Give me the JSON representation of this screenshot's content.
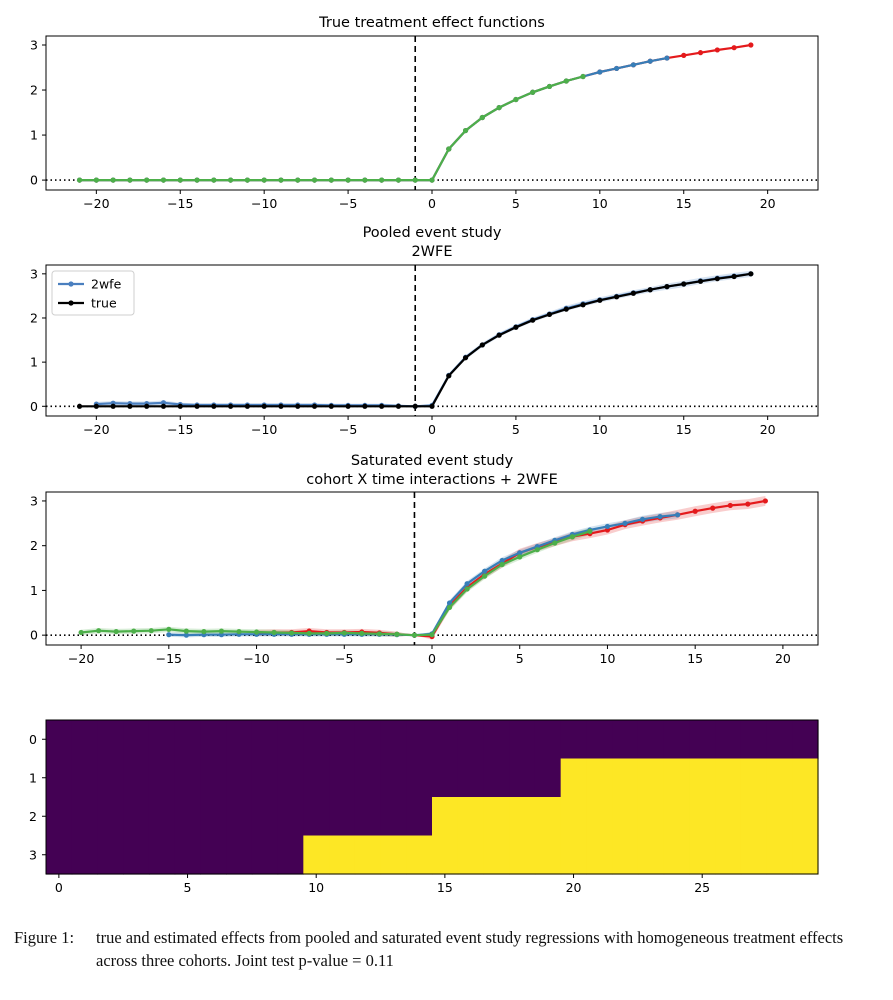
{
  "chart_data": [
    {
      "type": "line",
      "title": "True treatment effect functions",
      "xlim": [
        -23,
        23
      ],
      "ylim": [
        -0.22,
        3.2
      ],
      "xticks": [
        -20,
        -15,
        -10,
        -5,
        0,
        5,
        10,
        15,
        20
      ],
      "xtick_labels": [
        "−20",
        "−15",
        "−10",
        "−5",
        "0",
        "5",
        "10",
        "15",
        "20"
      ],
      "yticks": [
        0,
        1,
        2,
        3
      ],
      "ytick_labels": [
        "0",
        "1",
        "2",
        "3"
      ],
      "vline_x": -1,
      "hline_y": 0,
      "grid": false,
      "series": [
        {
          "color": "#e41a1c",
          "x": [
            -21,
            -20,
            -19,
            -18,
            -17,
            -16,
            -15,
            -14,
            -13,
            -12,
            -11,
            -10,
            -9,
            -8,
            -7,
            -6,
            -5,
            -4,
            -3,
            -2,
            -1,
            0,
            1,
            2,
            3,
            4,
            5,
            6,
            7,
            8,
            9,
            10,
            11,
            12,
            13,
            14,
            15,
            16,
            17,
            18,
            19
          ],
          "y": [
            0,
            0,
            0,
            0,
            0,
            0,
            0,
            0,
            0,
            0,
            0,
            0,
            0,
            0,
            0,
            0,
            0,
            0,
            0,
            0,
            0,
            0,
            0.69,
            1.1,
            1.39,
            1.61,
            1.79,
            1.95,
            2.08,
            2.2,
            2.3,
            2.4,
            2.48,
            2.56,
            2.64,
            2.71,
            2.77,
            2.83,
            2.89,
            2.94,
            3.0
          ]
        },
        {
          "color": "#377eb8",
          "x": [
            -21,
            -20,
            -19,
            -18,
            -17,
            -16,
            -15,
            -14,
            -13,
            -12,
            -11,
            -10,
            -9,
            -8,
            -7,
            -6,
            -5,
            -4,
            -3,
            -2,
            -1,
            0,
            1,
            2,
            3,
            4,
            5,
            6,
            7,
            8,
            9,
            10,
            11,
            12,
            13,
            14
          ],
          "y": [
            0,
            0,
            0,
            0,
            0,
            0,
            0,
            0,
            0,
            0,
            0,
            0,
            0,
            0,
            0,
            0,
            0,
            0,
            0,
            0,
            0,
            0,
            0.69,
            1.1,
            1.39,
            1.61,
            1.79,
            1.95,
            2.08,
            2.2,
            2.3,
            2.4,
            2.48,
            2.56,
            2.64,
            2.71
          ]
        },
        {
          "color": "#4daf4a",
          "x": [
            -21,
            -20,
            -19,
            -18,
            -17,
            -16,
            -15,
            -14,
            -13,
            -12,
            -11,
            -10,
            -9,
            -8,
            -7,
            -6,
            -5,
            -4,
            -3,
            -2,
            -1,
            0,
            1,
            2,
            3,
            4,
            5,
            6,
            7,
            8,
            9
          ],
          "y": [
            0,
            0,
            0,
            0,
            0,
            0,
            0,
            0,
            0,
            0,
            0,
            0,
            0,
            0,
            0,
            0,
            0,
            0,
            0,
            0,
            0,
            0,
            0.69,
            1.1,
            1.39,
            1.61,
            1.79,
            1.95,
            2.08,
            2.2,
            2.3
          ]
        }
      ]
    },
    {
      "type": "line",
      "title": "Pooled event study\n2WFE",
      "xlim": [
        -23,
        23
      ],
      "ylim": [
        -0.22,
        3.2
      ],
      "xticks": [
        -20,
        -15,
        -10,
        -5,
        0,
        5,
        10,
        15,
        20
      ],
      "xtick_labels": [
        "−20",
        "−15",
        "−10",
        "−5",
        "0",
        "5",
        "10",
        "15",
        "20"
      ],
      "yticks": [
        0,
        1,
        2,
        3
      ],
      "ytick_labels": [
        "0",
        "1",
        "2",
        "3"
      ],
      "vline_x": -1,
      "hline_y": 0,
      "grid": false,
      "legend": {
        "position": "upper-left",
        "entries": [
          {
            "name": "2wfe",
            "color": "#4a7fbf"
          },
          {
            "name": "true",
            "color": "#000000"
          }
        ]
      },
      "series": [
        {
          "name": "2wfe",
          "color": "#4a7fbf",
          "band": true,
          "x": [
            -20,
            -19,
            -18,
            -17,
            -16,
            -15,
            -14,
            -13,
            -12,
            -11,
            -10,
            -9,
            -8,
            -7,
            -6,
            -5,
            -4,
            -3,
            -2,
            -1,
            0,
            1,
            2,
            3,
            4,
            5,
            6,
            7,
            8,
            9,
            10,
            11,
            12,
            13,
            14,
            15,
            16,
            17,
            18,
            19
          ],
          "y": [
            0.05,
            0.07,
            0.06,
            0.06,
            0.08,
            0.04,
            0.03,
            0.03,
            0.03,
            0.03,
            0.03,
            0.03,
            0.03,
            0.03,
            0.02,
            0.02,
            0.02,
            0.02,
            0.01,
            0,
            0.02,
            0.7,
            1.11,
            1.39,
            1.62,
            1.8,
            1.96,
            2.09,
            2.22,
            2.32,
            2.41,
            2.49,
            2.57,
            2.64,
            2.71,
            2.77,
            2.84,
            2.9,
            2.95,
            3.0
          ],
          "lower": [
            0.0,
            0.02,
            0.01,
            0.01,
            0.03,
            0.0,
            -0.01,
            -0.01,
            -0.01,
            -0.01,
            -0.01,
            -0.01,
            -0.01,
            -0.01,
            -0.02,
            -0.02,
            -0.02,
            -0.02,
            -0.02,
            0,
            -0.01,
            0.66,
            1.06,
            1.34,
            1.57,
            1.75,
            1.91,
            2.04,
            2.16,
            2.26,
            2.35,
            2.43,
            2.51,
            2.58,
            2.64,
            2.7,
            2.77,
            2.83,
            2.88,
            2.93
          ],
          "upper": [
            0.1,
            0.12,
            0.11,
            0.11,
            0.13,
            0.08,
            0.07,
            0.07,
            0.07,
            0.07,
            0.07,
            0.07,
            0.07,
            0.07,
            0.06,
            0.06,
            0.06,
            0.06,
            0.04,
            0,
            0.05,
            0.74,
            1.16,
            1.44,
            1.67,
            1.85,
            2.01,
            2.14,
            2.28,
            2.38,
            2.47,
            2.55,
            2.63,
            2.7,
            2.78,
            2.84,
            2.91,
            2.97,
            3.02,
            3.07
          ]
        },
        {
          "name": "true",
          "color": "#000000",
          "x": [
            -21,
            -20,
            -19,
            -18,
            -17,
            -16,
            -15,
            -14,
            -13,
            -12,
            -11,
            -10,
            -9,
            -8,
            -7,
            -6,
            -5,
            -4,
            -3,
            -2,
            -1,
            0,
            1,
            2,
            3,
            4,
            5,
            6,
            7,
            8,
            9,
            10,
            11,
            12,
            13,
            14,
            15,
            16,
            17,
            18,
            19
          ],
          "y": [
            0,
            0,
            0,
            0,
            0,
            0,
            0,
            0,
            0,
            0,
            0,
            0,
            0,
            0,
            0,
            0,
            0,
            0,
            0,
            0,
            0,
            0,
            0.69,
            1.1,
            1.39,
            1.61,
            1.79,
            1.95,
            2.08,
            2.2,
            2.3,
            2.4,
            2.48,
            2.56,
            2.64,
            2.71,
            2.77,
            2.83,
            2.89,
            2.94,
            3.0
          ]
        }
      ]
    },
    {
      "type": "line",
      "title": "Saturated event study\ncohort X time interactions + 2WFE",
      "xlim": [
        -22,
        22
      ],
      "ylim": [
        -0.22,
        3.2
      ],
      "xticks": [
        -20,
        -15,
        -10,
        -5,
        0,
        5,
        10,
        15,
        20
      ],
      "xtick_labels": [
        "−20",
        "−15",
        "−10",
        "−5",
        "0",
        "5",
        "10",
        "15",
        "20"
      ],
      "yticks": [
        0,
        1,
        2,
        3
      ],
      "ytick_labels": [
        "0",
        "1",
        "2",
        "3"
      ],
      "vline_x": -1,
      "hline_y": 0,
      "grid": false,
      "series": [
        {
          "color": "#e41a1c",
          "band": true,
          "x": [
            -10,
            -9,
            -8,
            -7,
            -6,
            -5,
            -4,
            -3,
            -2,
            -1,
            0,
            1,
            2,
            3,
            4,
            5,
            6,
            7,
            8,
            9,
            10,
            11,
            12,
            13,
            14,
            15,
            16,
            17,
            18,
            19
          ],
          "y": [
            0.05,
            0.06,
            0.06,
            0.09,
            0.06,
            0.06,
            0.07,
            0.05,
            0.02,
            0,
            -0.03,
            0.65,
            1.07,
            1.36,
            1.6,
            1.84,
            1.97,
            2.08,
            2.2,
            2.27,
            2.35,
            2.47,
            2.55,
            2.62,
            2.69,
            2.77,
            2.84,
            2.9,
            2.93,
            3.0
          ],
          "lower": [
            -0.02,
            -0.01,
            -0.01,
            0.02,
            -0.01,
            -0.01,
            0.0,
            -0.02,
            -0.04,
            0,
            -0.1,
            0.56,
            0.98,
            1.27,
            1.51,
            1.75,
            1.88,
            1.99,
            2.1,
            2.17,
            2.25,
            2.37,
            2.45,
            2.52,
            2.58,
            2.66,
            2.73,
            2.79,
            2.82,
            2.89
          ],
          "upper": [
            0.12,
            0.13,
            0.13,
            0.16,
            0.13,
            0.13,
            0.14,
            0.12,
            0.08,
            0,
            0.04,
            0.74,
            1.16,
            1.45,
            1.69,
            1.93,
            2.06,
            2.17,
            2.3,
            2.37,
            2.45,
            2.57,
            2.65,
            2.72,
            2.8,
            2.88,
            2.95,
            3.01,
            3.04,
            3.11
          ]
        },
        {
          "color": "#377eb8",
          "band": true,
          "x": [
            -15,
            -14,
            -13,
            -12,
            -11,
            -10,
            -9,
            -8,
            -7,
            -6,
            -5,
            -4,
            -3,
            -2,
            -1,
            0,
            1,
            2,
            3,
            4,
            5,
            6,
            7,
            8,
            9,
            10,
            11,
            12,
            13,
            14
          ],
          "y": [
            0.01,
            0.0,
            0.01,
            0.01,
            0.02,
            0.02,
            0.02,
            0.02,
            0.02,
            0.02,
            0.02,
            0.02,
            0.02,
            0.01,
            0,
            0.03,
            0.72,
            1.15,
            1.43,
            1.67,
            1.84,
            1.98,
            2.12,
            2.25,
            2.35,
            2.43,
            2.5,
            2.59,
            2.65,
            2.69
          ],
          "lower": [
            -0.04,
            -0.05,
            -0.04,
            -0.04,
            -0.03,
            -0.03,
            -0.03,
            -0.03,
            -0.03,
            -0.03,
            -0.03,
            -0.03,
            -0.03,
            -0.03,
            0,
            -0.02,
            0.66,
            1.09,
            1.37,
            1.6,
            1.77,
            1.91,
            2.05,
            2.18,
            2.28,
            2.36,
            2.43,
            2.51,
            2.57,
            2.61
          ],
          "upper": [
            0.06,
            0.05,
            0.06,
            0.06,
            0.07,
            0.07,
            0.07,
            0.07,
            0.07,
            0.07,
            0.07,
            0.07,
            0.07,
            0.05,
            0,
            0.08,
            0.78,
            1.21,
            1.49,
            1.74,
            1.91,
            2.05,
            2.19,
            2.32,
            2.42,
            2.5,
            2.57,
            2.67,
            2.73,
            2.77
          ]
        },
        {
          "color": "#4daf4a",
          "band": true,
          "x": [
            -20,
            -19,
            -18,
            -17,
            -16,
            -15,
            -14,
            -13,
            -12,
            -11,
            -10,
            -9,
            -8,
            -7,
            -6,
            -5,
            -4,
            -3,
            -2,
            -1,
            0,
            1,
            2,
            3,
            4,
            5,
            6,
            7,
            8,
            9
          ],
          "y": [
            0.06,
            0.1,
            0.08,
            0.09,
            0.1,
            0.13,
            0.09,
            0.08,
            0.09,
            0.08,
            0.07,
            0.06,
            0.05,
            0.04,
            0.04,
            0.05,
            0.04,
            0.03,
            0.02,
            0,
            0.01,
            0.62,
            1.03,
            1.32,
            1.58,
            1.75,
            1.91,
            2.06,
            2.2,
            2.32
          ],
          "lower": [
            0.0,
            0.04,
            0.02,
            0.03,
            0.04,
            0.07,
            0.03,
            0.02,
            0.03,
            0.02,
            0.01,
            0.0,
            -0.01,
            -0.02,
            -0.02,
            -0.01,
            -0.02,
            -0.03,
            -0.03,
            0,
            -0.05,
            0.55,
            0.96,
            1.25,
            1.51,
            1.68,
            1.84,
            1.99,
            2.12,
            2.24
          ],
          "upper": [
            0.12,
            0.16,
            0.14,
            0.15,
            0.16,
            0.19,
            0.15,
            0.14,
            0.15,
            0.14,
            0.13,
            0.12,
            0.11,
            0.1,
            0.1,
            0.11,
            0.1,
            0.09,
            0.07,
            0,
            0.07,
            0.69,
            1.1,
            1.39,
            1.65,
            1.82,
            1.98,
            2.13,
            2.28,
            2.4
          ]
        }
      ]
    },
    {
      "type": "heatmap",
      "rows": [
        "0",
        "1",
        "2",
        "3"
      ],
      "columns": 30,
      "xticks": [
        0,
        5,
        10,
        15,
        20,
        25
      ],
      "xtick_labels": [
        "0",
        "5",
        "10",
        "15",
        "20",
        "25"
      ],
      "colors": {
        "off": "#440154",
        "on": "#fde725"
      },
      "row_on_from_column": [
        null,
        20,
        15,
        10
      ]
    }
  ],
  "caption": {
    "label": "Figure 1:",
    "text": "true and estimated effects from pooled and saturated event study regressions with homogeneous treatment effects across three cohorts. Joint test p-value = 0.11"
  }
}
